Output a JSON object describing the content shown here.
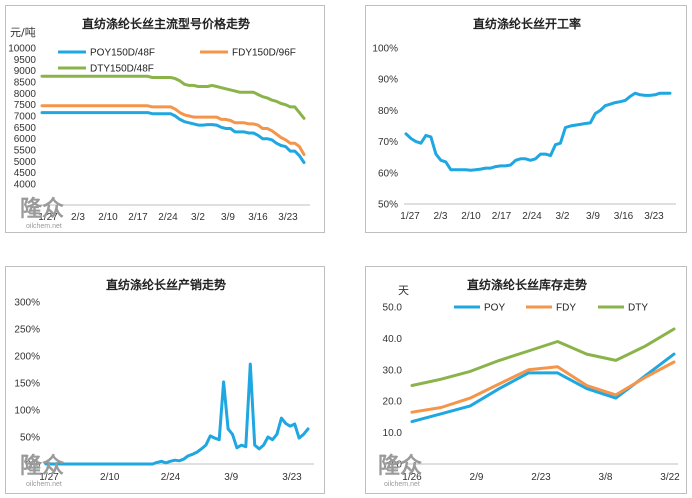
{
  "watermark": {
    "brand": "隆众",
    "site": "oilchem.net",
    "color": "#9a9a9a"
  },
  "chart_data": [
    {
      "type": "line",
      "title": "直纺涤纶长丝主流型号价格走势",
      "ylabel": "元/吨",
      "ylim": [
        4000,
        10000
      ],
      "yticks": [
        "4000",
        "4500",
        "5000",
        "5500",
        "6000",
        "6500",
        "7000",
        "7500",
        "8000",
        "8500",
        "9000",
        "9500",
        "10000"
      ],
      "xticks": [
        "1/27",
        "2/3",
        "2/10",
        "2/17",
        "2/24",
        "3/2",
        "3/9",
        "3/16",
        "3/23"
      ],
      "grid": false,
      "legend_position": "top-left",
      "series": [
        {
          "name": "POY150D/48F",
          "color": "#1ea7e1",
          "values": [
            7150,
            7150,
            7150,
            7150,
            7150,
            7150,
            7150,
            7150,
            7150,
            7150,
            7150,
            7150,
            7150,
            7150,
            7150,
            7150,
            7150,
            7150,
            7150,
            7150,
            7150,
            7150,
            7150,
            7150,
            7100,
            7100,
            7100,
            7100,
            7100,
            7000,
            6850,
            6750,
            6700,
            6650,
            6600,
            6600,
            6620,
            6620,
            6600,
            6500,
            6450,
            6450,
            6300,
            6300,
            6300,
            6250,
            6250,
            6150,
            6000,
            6000,
            5950,
            5800,
            5700,
            5650,
            5450,
            5450,
            5250,
            4950
          ]
        },
        {
          "name": "FDY150D/96F",
          "color": "#f4954a",
          "values": [
            7450,
            7450,
            7450,
            7450,
            7450,
            7450,
            7450,
            7450,
            7450,
            7450,
            7450,
            7450,
            7450,
            7450,
            7450,
            7450,
            7450,
            7450,
            7450,
            7450,
            7450,
            7450,
            7450,
            7450,
            7400,
            7400,
            7400,
            7400,
            7400,
            7300,
            7150,
            7050,
            7000,
            6950,
            6950,
            6950,
            6950,
            6950,
            6950,
            6850,
            6850,
            6800,
            6700,
            6700,
            6700,
            6650,
            6650,
            6600,
            6450,
            6450,
            6350,
            6200,
            6050,
            5950,
            5800,
            5800,
            5650,
            5300
          ]
        },
        {
          "name": "DTY150D/48F",
          "color": "#8ab34a",
          "values": [
            8750,
            8750,
            8750,
            8750,
            8750,
            8750,
            8750,
            8750,
            8750,
            8750,
            8750,
            8750,
            8750,
            8750,
            8750,
            8750,
            8750,
            8750,
            8750,
            8750,
            8750,
            8750,
            8750,
            8750,
            8700,
            8700,
            8700,
            8700,
            8700,
            8650,
            8550,
            8400,
            8350,
            8350,
            8300,
            8300,
            8300,
            8350,
            8300,
            8250,
            8200,
            8150,
            8100,
            8050,
            8050,
            8050,
            8050,
            7950,
            7850,
            7800,
            7700,
            7650,
            7550,
            7500,
            7400,
            7400,
            7150,
            6900
          ]
        }
      ]
    },
    {
      "type": "line",
      "title": "直纺涤纶长丝开工率",
      "ylim": [
        50,
        100
      ],
      "yticks": [
        "50%",
        "60%",
        "70%",
        "80%",
        "90%",
        "100%"
      ],
      "xticks": [
        "1/27",
        "2/3",
        "2/10",
        "2/17",
        "2/24",
        "3/2",
        "3/9",
        "3/16",
        "3/23"
      ],
      "grid": false,
      "series": [
        {
          "color": "#1ea7e1",
          "values": [
            72.5,
            71,
            70,
            69.5,
            72,
            71.5,
            66,
            64,
            63.5,
            61,
            61,
            61,
            61,
            60.8,
            61,
            61.2,
            61.5,
            61.5,
            62,
            62.2,
            62.2,
            62.5,
            64,
            64.5,
            64.5,
            64,
            64.5,
            66,
            66,
            65.5,
            69,
            69.5,
            74.5,
            75,
            75.3,
            75.5,
            75.8,
            76,
            79,
            80,
            81.5,
            82,
            82.5,
            82.8,
            83.2,
            84.5,
            85.5,
            85,
            84.8,
            84.8,
            85,
            85.5,
            85.5,
            85.5
          ]
        }
      ]
    },
    {
      "type": "line",
      "title": "直纺涤纶长丝产销走势",
      "ylim": [
        0,
        300
      ],
      "yticks": [
        "0%",
        "50%",
        "100%",
        "150%",
        "200%",
        "250%",
        "300%"
      ],
      "xticks": [
        "1/27",
        "2/10",
        "2/24",
        "3/9",
        "3/23"
      ],
      "grid": false,
      "series": [
        {
          "color": "#1ea7e1",
          "values": [
            0,
            0,
            0,
            0,
            0,
            0,
            0,
            0,
            0,
            0,
            0,
            0,
            0,
            0,
            0,
            0,
            0,
            0,
            0,
            0,
            0,
            0,
            0,
            0,
            0,
            3,
            5,
            2,
            5,
            7,
            6,
            9,
            15,
            18,
            22,
            28,
            35,
            52,
            48,
            45,
            152,
            65,
            55,
            30,
            35,
            32,
            185,
            35,
            28,
            35,
            50,
            45,
            55,
            85,
            75,
            70,
            74,
            48,
            55,
            65
          ]
        }
      ]
    },
    {
      "type": "line",
      "title": "直纺涤纶长丝库存走势",
      "ylabel": "天",
      "ylim": [
        0,
        50
      ],
      "yticks": [
        "0.0",
        "10.0",
        "20.0",
        "30.0",
        "40.0",
        "50.0"
      ],
      "x": [
        "1/26",
        "2/2",
        "2/9",
        "2/16",
        "2/23",
        "3/1",
        "3/8",
        "3/15",
        "3/22",
        "3/29"
      ],
      "xticks": [
        "1/26",
        "2/9",
        "2/23",
        "3/8",
        "3/22"
      ],
      "grid": false,
      "legend_position": "top",
      "series": [
        {
          "name": "POY",
          "color": "#1ea7e1",
          "values": [
            13.5,
            16,
            18.5,
            24,
            29,
            29,
            24,
            21,
            28,
            35
          ]
        },
        {
          "name": "FDY",
          "color": "#f4954a",
          "values": [
            16.5,
            18,
            21,
            25.5,
            30,
            31,
            25,
            22,
            27.5,
            32.5
          ]
        },
        {
          "name": "DTY",
          "color": "#8ab34a",
          "values": [
            25,
            27,
            29.5,
            33,
            36,
            39,
            35,
            33,
            37.5,
            43
          ]
        }
      ]
    }
  ]
}
